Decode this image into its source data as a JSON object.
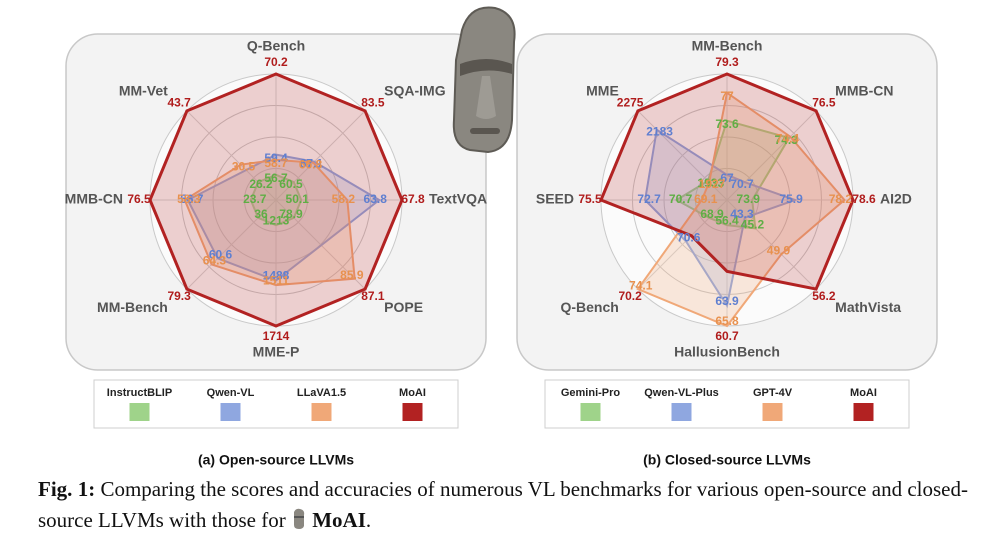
{
  "chart_data": [
    {
      "type": "radar",
      "subtitle": "(a) Open-source LLVMs",
      "categories": [
        "Q-Bench",
        "SQA-IMG",
        "TextVQA",
        "POPE",
        "MME-P",
        "MM-Bench",
        "MMB-CN",
        "MM-Vet"
      ],
      "series": [
        {
          "name": "InstructBLIP",
          "color": "#9fd38a",
          "values": [
            56.7,
            60.5,
            50.1,
            78.9,
            1213,
            36.0,
            23.7,
            26.2
          ]
        },
        {
          "name": "Qwen-VL",
          "color": "#8fa7e0",
          "values": [
            59.4,
            67.1,
            63.8,
            null,
            1488,
            60.6,
            56.7,
            null
          ]
        },
        {
          "name": "LLaVA1.5",
          "color": "#f0a878",
          "values": [
            58.7,
            66.8,
            58.2,
            85.9,
            1511,
            64.3,
            58.3,
            30.5
          ]
        },
        {
          "name": "MoAI",
          "color": "#b22222",
          "values": [
            70.2,
            83.5,
            67.8,
            87.1,
            1714,
            79.3,
            76.5,
            43.7
          ]
        }
      ]
    },
    {
      "type": "radar",
      "subtitle": "(b) Closed-source LLVMs",
      "categories": [
        "MM-Bench",
        "MMB-CN",
        "AI2D",
        "MathVista",
        "HallusionBench",
        "Q-Bench",
        "SEED",
        "MME"
      ],
      "series": [
        {
          "name": "Gemini-Pro",
          "color": "#9fd38a",
          "values": [
            73.6,
            74.3,
            73.9,
            45.2,
            56.4,
            68.9,
            70.7,
            1933
          ]
        },
        {
          "name": "Qwen-VL-Plus",
          "color": "#8fa7e0",
          "values": [
            67.0,
            70.7,
            75.9,
            43.3,
            63.9,
            70.6,
            72.7,
            2183
          ]
        },
        {
          "name": "GPT-4V",
          "color": "#f0a878",
          "values": [
            77.0,
            74.4,
            78.2,
            49.9,
            65.8,
            74.1,
            69.1,
            1927
          ]
        },
        {
          "name": "MoAI",
          "color": "#b22222",
          "values": [
            79.3,
            76.5,
            78.6,
            56.2,
            60.7,
            70.2,
            75.5,
            2275
          ]
        }
      ]
    }
  ],
  "caption": {
    "label": "Fig. 1:",
    "text": "Comparing the scores and accuracies of numerous VL benchmarks for various open-source and closed-source LLVMs with those for",
    "model": "MoAI",
    "end": "."
  }
}
